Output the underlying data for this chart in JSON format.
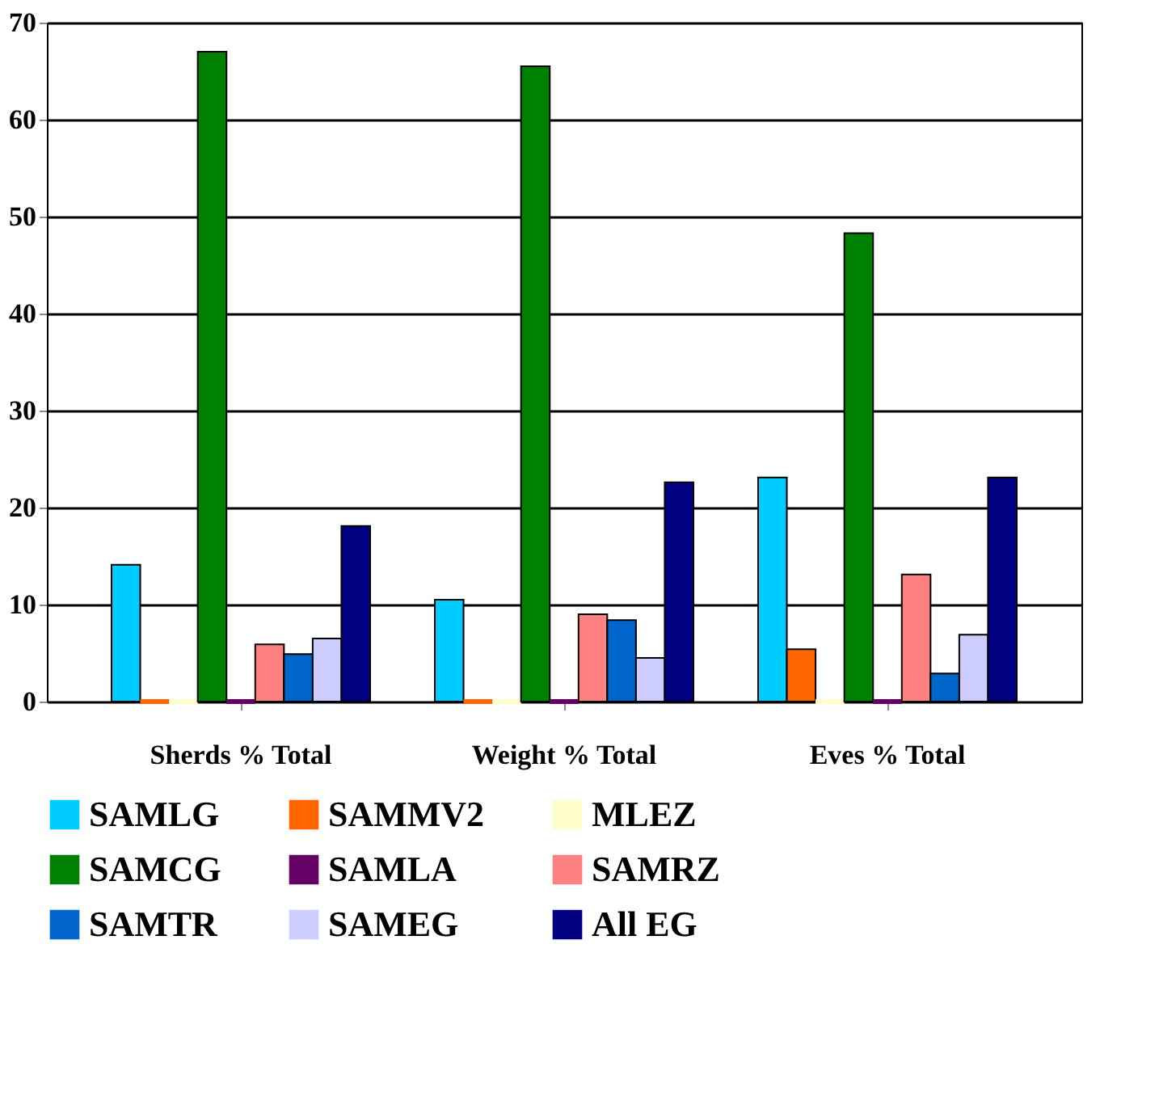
{
  "chart_data": {
    "type": "bar",
    "categories": [
      "Sherds % Total",
      "Weight % Total",
      "Eves % Total"
    ],
    "series": [
      {
        "name": "SAMLG",
        "color": "#00ccff",
        "values": [
          14.1,
          10.5,
          23.1
        ]
      },
      {
        "name": "SAMMV2",
        "color": "#ff6600",
        "values": [
          0,
          0,
          5.4
        ]
      },
      {
        "name": "MLEZ",
        "color": "#ffffcc",
        "values": [
          0,
          0,
          0
        ]
      },
      {
        "name": "SAMCG",
        "color": "#008000",
        "values": [
          67,
          65.5,
          48.3
        ]
      },
      {
        "name": "SAMLA",
        "color": "#660066",
        "values": [
          0,
          0,
          0
        ]
      },
      {
        "name": "SAMRZ",
        "color": "#ff8080",
        "values": [
          5.9,
          9.0,
          13.1
        ]
      },
      {
        "name": "SAMTR",
        "color": "#0066cc",
        "values": [
          4.9,
          8.4,
          2.9
        ]
      },
      {
        "name": "SAMEG",
        "color": "#ccccff",
        "values": [
          6.5,
          4.5,
          6.9
        ]
      },
      {
        "name": "All EG",
        "color": "#000080",
        "values": [
          18.1,
          22.6,
          23.1
        ]
      }
    ],
    "ylim": [
      0,
      70
    ],
    "yticks": [
      0,
      10,
      20,
      30,
      40,
      50,
      60,
      70
    ],
    "grid": "y",
    "legend": "bottom"
  }
}
